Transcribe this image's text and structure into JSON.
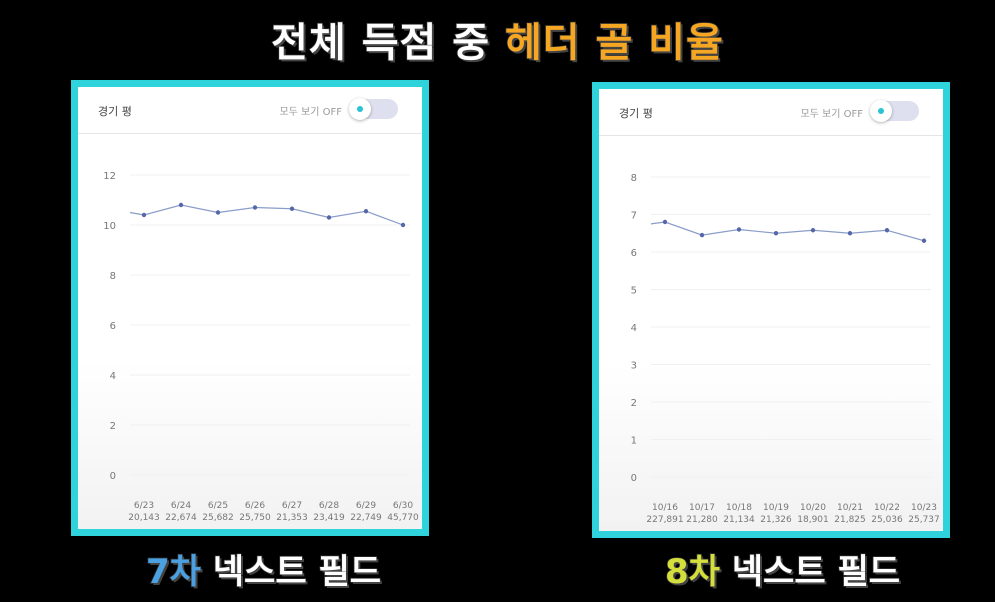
{
  "title": {
    "part1": "전체 득점 중",
    "part2": "헤더 골 비율"
  },
  "colors": {
    "accent": "#2fd3dc",
    "highlight": "#f5a623",
    "line": "#8a9cc8"
  },
  "panels": [
    {
      "header_title": "경기 평",
      "toggle_label": "모두 보기 OFF",
      "caption_num": "7차",
      "caption_text": " 넥스트 필드",
      "chart_data": {
        "type": "line",
        "ylim": [
          0,
          12
        ],
        "yticks": [
          0,
          2,
          4,
          6,
          8,
          10,
          12
        ],
        "categories": [
          "6/23",
          "6/24",
          "6/25",
          "6/26",
          "6/27",
          "6/28",
          "6/29",
          "6/30"
        ],
        "sublabels": [
          "20,143",
          "22,674",
          "25,682",
          "25,750",
          "21,353",
          "23,419",
          "22,749",
          "45,770"
        ],
        "lead_value": 10.5,
        "values": [
          10.4,
          10.8,
          10.5,
          10.7,
          10.65,
          10.3,
          10.55,
          10.0
        ]
      }
    },
    {
      "header_title": "경기 평",
      "toggle_label": "모두 보기 OFF",
      "caption_num": "8차",
      "caption_text": " 넥스트 필드",
      "chart_data": {
        "type": "line",
        "ylim": [
          0,
          8
        ],
        "yticks": [
          0,
          1,
          2,
          3,
          4,
          5,
          6,
          7,
          8
        ],
        "categories": [
          "10/16",
          "10/17",
          "10/18",
          "10/19",
          "10/20",
          "10/21",
          "10/22",
          "10/23"
        ],
        "sublabels": [
          "227,891",
          "21,280",
          "21,134",
          "21,326",
          "18,901",
          "21,825",
          "25,036",
          "25,737"
        ],
        "lead_value": 6.75,
        "values": [
          6.8,
          6.45,
          6.6,
          6.5,
          6.58,
          6.5,
          6.58,
          6.3
        ]
      }
    }
  ]
}
